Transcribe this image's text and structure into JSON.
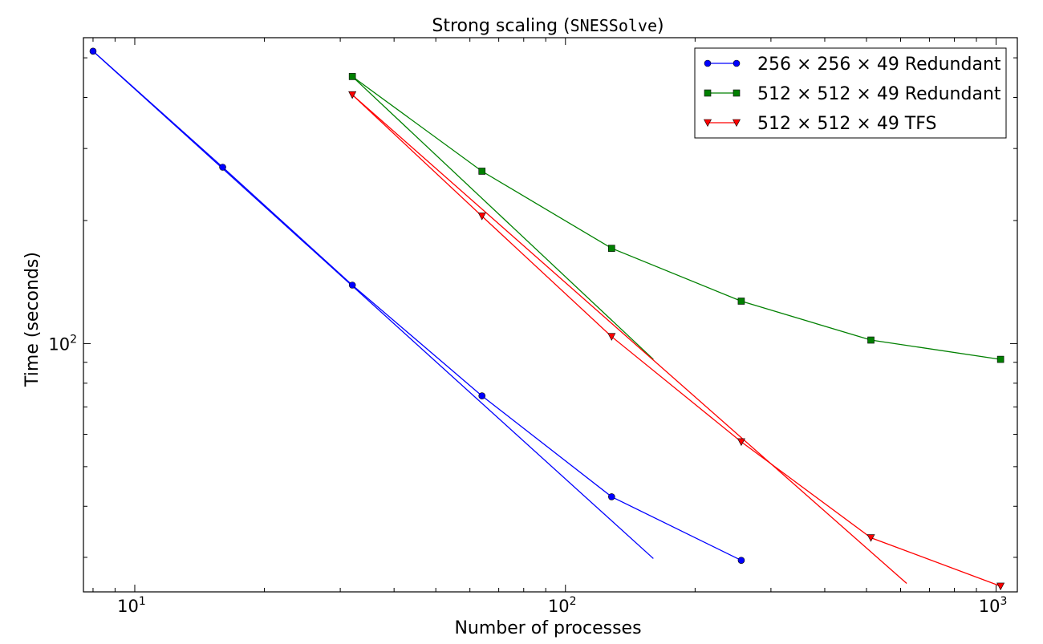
{
  "chart_data": {
    "type": "line",
    "title_prefix": "Strong scaling (",
    "title_code": "SNESSolve",
    "title_suffix": ")",
    "xlabel": "Number of processes",
    "ylabel": "Time (seconds)",
    "xscale": "log",
    "yscale": "log",
    "xlim": [
      7.6,
      1120
    ],
    "ylim": [
      24.7,
      560
    ],
    "x_major_ticks": [
      {
        "value": 10,
        "base": "10",
        "exp": "1"
      },
      {
        "value": 100,
        "base": "10",
        "exp": "2"
      },
      {
        "value": 1000,
        "base": "10",
        "exp": "3"
      }
    ],
    "y_major_ticks": [
      {
        "value": 100,
        "base": "10",
        "exp": "2"
      }
    ],
    "grid": false,
    "legend_position": "top-right",
    "series": [
      {
        "name": "256 × 256 × 49 Redundant",
        "color": "#0000ff",
        "marker": "circle",
        "x": [
          8,
          16,
          32,
          64,
          128,
          256
        ],
        "y": [
          519,
          270,
          139,
          74.5,
          42.2,
          29.5
        ],
        "reference_line": {
          "x": [
            8,
            160
          ],
          "y": [
            519,
            29.8
          ]
        }
      },
      {
        "name": "512 × 512 × 49 Redundant",
        "color": "#008000",
        "marker": "square",
        "x": [
          32,
          64,
          128,
          256,
          512,
          1024
        ],
        "y": [
          450,
          264,
          171,
          127,
          102,
          91.5
        ],
        "reference_line": {
          "x": [
            32,
            160
          ],
          "y": [
            450,
            91.5
          ]
        }
      },
      {
        "name": "512 × 512 × 49 TFS",
        "color": "#ff0000",
        "marker": "triangle-down",
        "x": [
          32,
          64,
          128,
          256,
          512,
          1024
        ],
        "y": [
          406,
          205,
          104,
          57.5,
          33.5,
          25.5
        ],
        "reference_line": {
          "x": [
            32,
            620
          ],
          "y": [
            406,
            25.9
          ]
        }
      }
    ]
  }
}
